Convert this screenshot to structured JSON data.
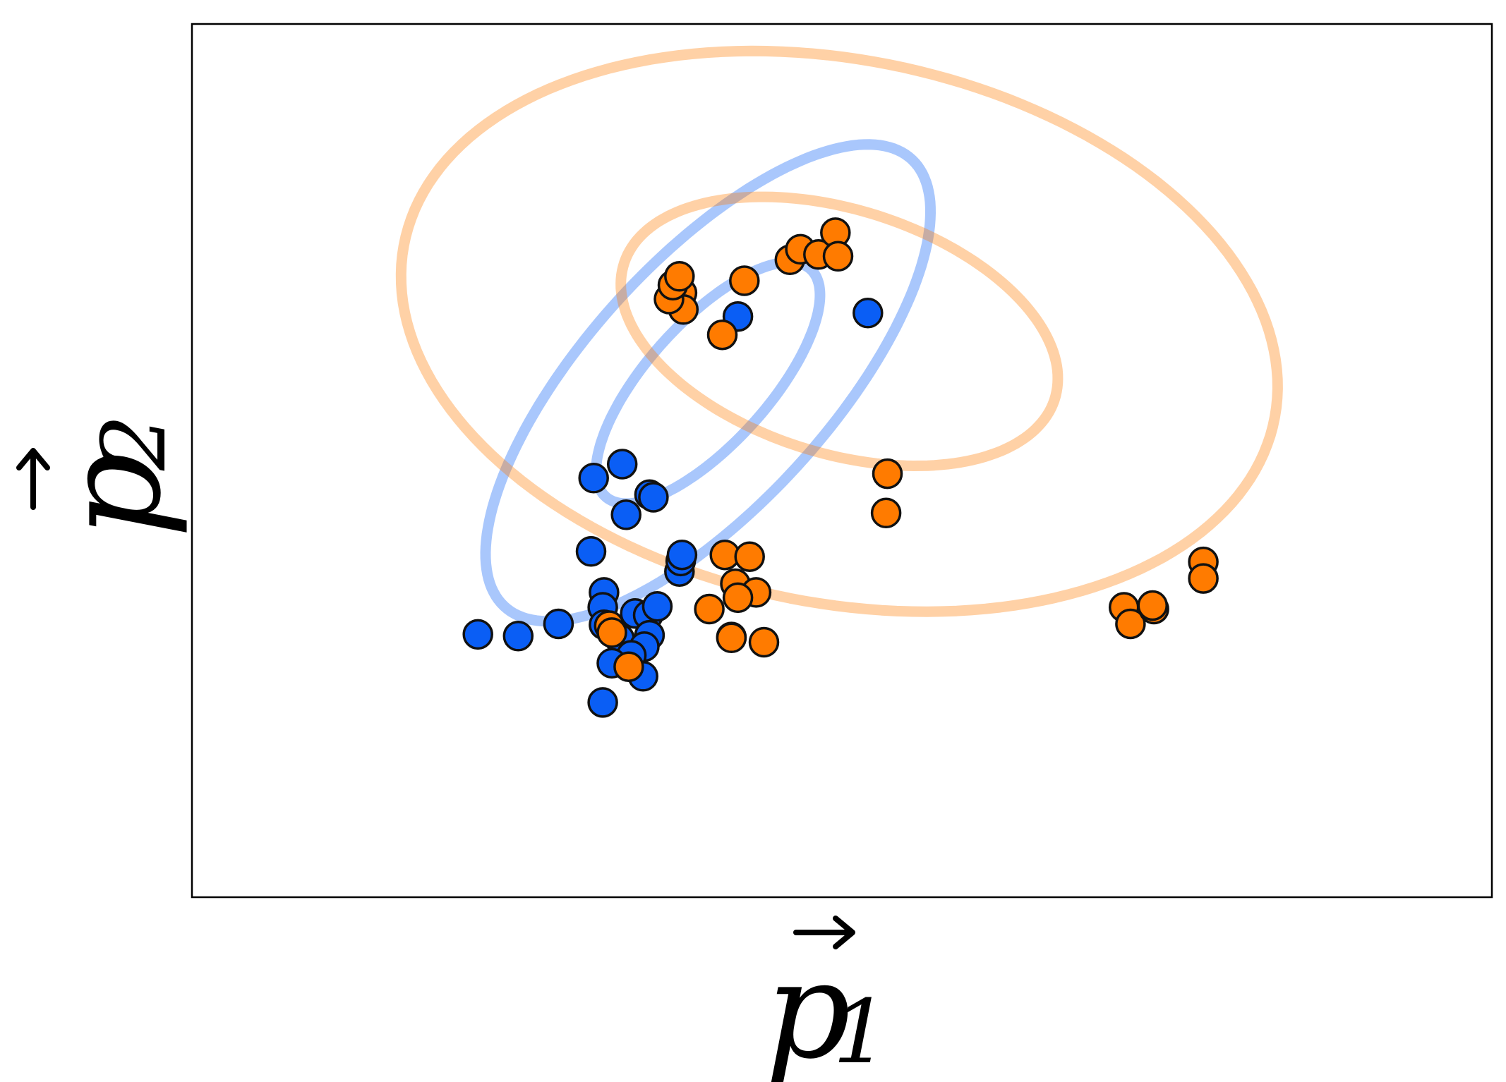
{
  "chart_data": {
    "type": "scatter",
    "title": "",
    "xlabel": "p",
    "xlabel_subscript": "1",
    "ylabel": "p",
    "ylabel_subscript": "2",
    "xlim": [
      0,
      10
    ],
    "ylim": [
      0,
      10
    ],
    "grid": false,
    "ticks_shown": false,
    "legend": "none",
    "series": [
      {
        "color": "#0a5ef5",
        "points": [
          [
            3.31,
            4.96
          ],
          [
            4.2,
            6.65
          ],
          [
            5.2,
            6.69
          ],
          [
            2.2,
            3.01
          ],
          [
            2.51,
            2.99
          ],
          [
            3.09,
            4.8
          ],
          [
            3.52,
            4.61
          ],
          [
            3.55,
            4.58
          ],
          [
            3.34,
            4.38
          ],
          [
            3.07,
            3.96
          ],
          [
            3.17,
            3.49
          ],
          [
            3.16,
            3.32
          ],
          [
            3.17,
            3.12
          ],
          [
            2.82,
            3.13
          ],
          [
            3.29,
            2.96
          ],
          [
            3.41,
            3.25
          ],
          [
            3.51,
            3.23
          ],
          [
            3.58,
            3.33
          ],
          [
            3.52,
            3.0
          ],
          [
            3.48,
            2.87
          ],
          [
            3.38,
            2.77
          ],
          [
            3.23,
            2.68
          ],
          [
            3.47,
            2.53
          ],
          [
            3.16,
            2.23
          ],
          [
            3.75,
            3.73
          ],
          [
            3.76,
            3.85
          ],
          [
            3.77,
            3.92
          ]
        ],
        "ellipses": [
          {
            "center": [
              3.97,
              5.89
            ],
            "semi_axes": [
              3.04,
              1.07
            ],
            "angle_deg": 62
          },
          {
            "center": [
              3.97,
              5.89
            ],
            "semi_axes": [
              1.54,
              0.53
            ],
            "angle_deg": 62
          }
        ]
      },
      {
        "color": "#ff7b00",
        "points": [
          [
            4.08,
            6.44
          ],
          [
            4.25,
            7.06
          ],
          [
            4.6,
            7.3
          ],
          [
            4.68,
            7.42
          ],
          [
            4.82,
            7.36
          ],
          [
            4.95,
            7.61
          ],
          [
            4.97,
            7.34
          ],
          [
            3.77,
            6.92
          ],
          [
            3.78,
            6.73
          ],
          [
            3.67,
            6.85
          ],
          [
            3.7,
            7.01
          ],
          [
            3.75,
            7.11
          ],
          [
            5.35,
            4.85
          ],
          [
            5.34,
            4.4
          ],
          [
            7.78,
            3.84
          ],
          [
            7.78,
            3.65
          ],
          [
            7.17,
            3.32
          ],
          [
            7.22,
            3.13
          ],
          [
            7.4,
            3.3
          ],
          [
            7.39,
            3.34
          ],
          [
            4.1,
            3.92
          ],
          [
            4.29,
            3.9
          ],
          [
            4.18,
            3.59
          ],
          [
            4.34,
            3.49
          ],
          [
            4.2,
            3.43
          ],
          [
            3.98,
            3.3
          ],
          [
            4.15,
            2.98
          ],
          [
            4.4,
            2.92
          ],
          [
            4.15,
            2.97
          ],
          [
            3.21,
            3.11
          ],
          [
            3.23,
            3.03
          ],
          [
            3.36,
            2.64
          ]
        ],
        "ellipses": [
          {
            "center": [
              4.98,
              6.48
            ],
            "semi_axes": [
              3.61,
              2.94
            ],
            "angle_deg": -38
          },
          {
            "center": [
              4.98,
              6.48
            ],
            "semi_axes": [
              1.88,
              1.29
            ],
            "angle_deg": -38
          }
        ]
      }
    ]
  }
}
